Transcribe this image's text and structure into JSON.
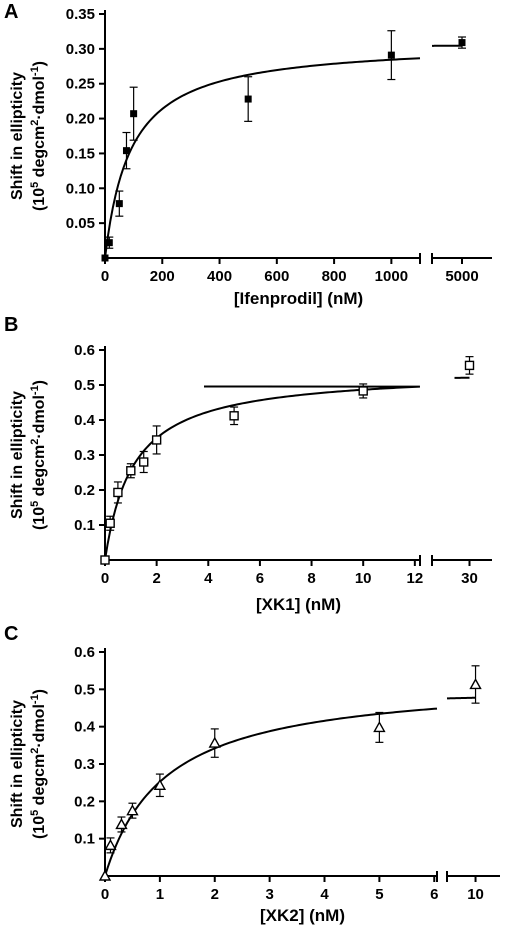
{
  "chart_data": [
    {
      "panel": "A",
      "type": "scatter",
      "ylabel_line1": "Shift in ellipticity",
      "ylabel_line2_a": "(10",
      "ylabel_line2_sup1": "5",
      "ylabel_line2_b": " degcm",
      "ylabel_line2_sup2": "2",
      "ylabel_line2_c": "·dmol",
      "ylabel_line2_sup3": "-1",
      "ylabel_line2_d": ")",
      "xlabel": "[Ifenprodil] (nM)",
      "ylim": [
        0,
        0.35
      ],
      "yticks": [
        "0.05",
        "0.10",
        "0.15",
        "0.20",
        "0.25",
        "0.30",
        "0.35"
      ],
      "xticks_seg1": [
        "0",
        "200",
        "400",
        "600",
        "800",
        "1000"
      ],
      "xticks_seg2": [
        "5000"
      ],
      "x_break": [
        1100,
        4850
      ],
      "marker": "filled-square",
      "x": [
        0,
        15,
        50,
        75,
        100,
        500,
        1000,
        5000
      ],
      "y": [
        0.0,
        0.022,
        0.078,
        0.154,
        0.207,
        0.228,
        0.291,
        0.309
      ],
      "err": [
        0.0,
        0.008,
        0.018,
        0.026,
        0.038,
        0.032,
        0.035,
        0.008
      ],
      "fit": {
        "model": "hyperbolic",
        "bmax": 0.31,
        "kd": 90
      }
    },
    {
      "panel": "B",
      "type": "scatter",
      "ylabel_line1": "Shift in ellipticity",
      "ylabel_line2_a": "(10",
      "ylabel_line2_sup1": "5",
      "ylabel_line2_b": " degcm",
      "ylabel_line2_sup2": "2",
      "ylabel_line2_c": "·dmol",
      "ylabel_line2_sup3": "-1",
      "ylabel_line2_d": ")",
      "xlabel": "[XK1] (nM)",
      "ylim": [
        0,
        0.6
      ],
      "yticks": [
        "0.1",
        "0.2",
        "0.3",
        "0.4",
        "0.5",
        "0.6"
      ],
      "xticks_seg1": [
        "0",
        "2",
        "4",
        "6",
        "8",
        "10",
        "12"
      ],
      "xticks_seg2": [
        "30"
      ],
      "x_break": [
        12.3,
        29
      ],
      "marker": "open-square",
      "x": [
        0,
        0.2,
        0.5,
        1.0,
        1.5,
        2.0,
        5.0,
        10.0,
        30.0
      ],
      "y": [
        0.0,
        0.105,
        0.193,
        0.255,
        0.28,
        0.343,
        0.412,
        0.483,
        0.556
      ],
      "err": [
        0.0,
        0.02,
        0.03,
        0.02,
        0.03,
        0.04,
        0.025,
        0.02,
        0.025
      ],
      "fit": {
        "model": "hyperbolic",
        "bmax": 0.54,
        "kd": 1.1
      }
    },
    {
      "panel": "C",
      "type": "scatter",
      "ylabel_line1": "Shift in ellipticity",
      "ylabel_line2_a": "(10",
      "ylabel_line2_sup1": "5",
      "ylabel_line2_b": " degcm",
      "ylabel_line2_sup2": "2",
      "ylabel_line2_c": "·dmol",
      "ylabel_line2_sup3": "-1",
      "ylabel_line2_d": ")",
      "xlabel": "[XK2] (nM)",
      "ylim": [
        0,
        0.6
      ],
      "yticks": [
        "0.1",
        "0.2",
        "0.3",
        "0.4",
        "0.5",
        "0.6"
      ],
      "xticks_seg1": [
        "0",
        "1",
        "2",
        "3",
        "4",
        "5",
        "6"
      ],
      "xticks_seg2": [
        "10"
      ],
      "x_break": [
        6.05,
        9.65
      ],
      "marker": "open-triangle",
      "x": [
        0,
        0.1,
        0.3,
        0.5,
        1.0,
        2.0,
        5.0,
        10.0
      ],
      "y": [
        0.0,
        0.082,
        0.138,
        0.175,
        0.243,
        0.356,
        0.398,
        0.513
      ],
      "err": [
        0.0,
        0.02,
        0.02,
        0.02,
        0.03,
        0.038,
        0.04,
        0.05
      ],
      "fit": {
        "model": "hyperbolic",
        "bmax": 0.53,
        "kd": 1.1
      }
    }
  ]
}
